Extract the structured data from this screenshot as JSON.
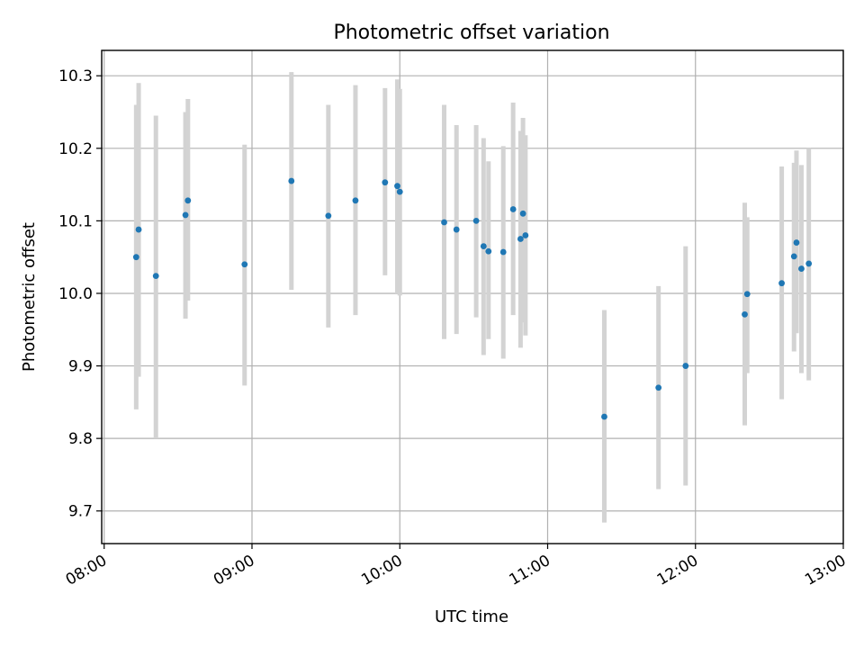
{
  "chart_data": {
    "type": "scatter",
    "title": "Photometric offset variation",
    "xlabel": "UTC time",
    "ylabel": "Photometric offset",
    "x_tick_labels": [
      "08:00",
      "09:00",
      "10:00",
      "11:00",
      "12:00",
      "13:00"
    ],
    "xlim": [
      "07:59",
      "13:00"
    ],
    "y_ticks": [
      9.7,
      9.8,
      9.9,
      10.0,
      10.1,
      10.2,
      10.3
    ],
    "y_tick_labels": [
      "9.7",
      "9.8",
      "9.9",
      "10.0",
      "10.1",
      "10.2",
      "10.3"
    ],
    "ylim": [
      9.655,
      10.335
    ],
    "grid": true,
    "point_color": "#1f77b4",
    "errorbar_color": "#d3d3d3",
    "points": [
      {
        "x": "08:13",
        "y": 10.05,
        "lo": 9.84,
        "hi": 10.26
      },
      {
        "x": "08:14",
        "y": 10.088,
        "lo": 9.885,
        "hi": 10.29
      },
      {
        "x": "08:21",
        "y": 10.024,
        "lo": 9.8,
        "hi": 10.245
      },
      {
        "x": "08:33",
        "y": 10.108,
        "lo": 9.965,
        "hi": 10.25
      },
      {
        "x": "08:34",
        "y": 10.128,
        "lo": 9.99,
        "hi": 10.268
      },
      {
        "x": "08:57",
        "y": 10.04,
        "lo": 9.873,
        "hi": 10.205
      },
      {
        "x": "09:16",
        "y": 10.155,
        "lo": 10.005,
        "hi": 10.305
      },
      {
        "x": "09:31",
        "y": 10.107,
        "lo": 9.953,
        "hi": 10.26
      },
      {
        "x": "09:42",
        "y": 10.128,
        "lo": 9.97,
        "hi": 10.287
      },
      {
        "x": "09:54",
        "y": 10.153,
        "lo": 10.025,
        "hi": 10.283
      },
      {
        "x": "09:59",
        "y": 10.148,
        "lo": 10.0,
        "hi": 10.295
      },
      {
        "x": "10:00",
        "y": 10.14,
        "lo": 9.997,
        "hi": 10.282
      },
      {
        "x": "10:18",
        "y": 10.098,
        "lo": 9.937,
        "hi": 10.26
      },
      {
        "x": "10:23",
        "y": 10.088,
        "lo": 9.944,
        "hi": 10.232
      },
      {
        "x": "10:31",
        "y": 10.1,
        "lo": 9.967,
        "hi": 10.232
      },
      {
        "x": "10:34",
        "y": 10.065,
        "lo": 9.915,
        "hi": 10.214
      },
      {
        "x": "10:36",
        "y": 10.058,
        "lo": 9.937,
        "hi": 10.182
      },
      {
        "x": "10:42",
        "y": 10.057,
        "lo": 9.91,
        "hi": 10.203
      },
      {
        "x": "10:46",
        "y": 10.116,
        "lo": 9.97,
        "hi": 10.263
      },
      {
        "x": "10:49",
        "y": 10.075,
        "lo": 9.925,
        "hi": 10.224
      },
      {
        "x": "10:50",
        "y": 10.11,
        "lo": 9.96,
        "hi": 10.242
      },
      {
        "x": "10:51",
        "y": 10.08,
        "lo": 9.942,
        "hi": 10.218
      },
      {
        "x": "11:23",
        "y": 9.83,
        "lo": 9.684,
        "hi": 9.977
      },
      {
        "x": "11:45",
        "y": 9.87,
        "lo": 9.73,
        "hi": 10.01
      },
      {
        "x": "11:56",
        "y": 9.9,
        "lo": 9.735,
        "hi": 10.065
      },
      {
        "x": "12:20",
        "y": 9.971,
        "lo": 9.818,
        "hi": 10.125
      },
      {
        "x": "12:21",
        "y": 9.999,
        "lo": 9.89,
        "hi": 10.105
      },
      {
        "x": "12:35",
        "y": 10.014,
        "lo": 9.854,
        "hi": 10.175
      },
      {
        "x": "12:40",
        "y": 10.051,
        "lo": 9.92,
        "hi": 10.18
      },
      {
        "x": "12:41",
        "y": 10.07,
        "lo": 9.945,
        "hi": 10.197
      },
      {
        "x": "12:43",
        "y": 10.034,
        "lo": 9.89,
        "hi": 10.177
      },
      {
        "x": "12:46",
        "y": 10.041,
        "lo": 9.88,
        "hi": 10.2
      }
    ]
  }
}
